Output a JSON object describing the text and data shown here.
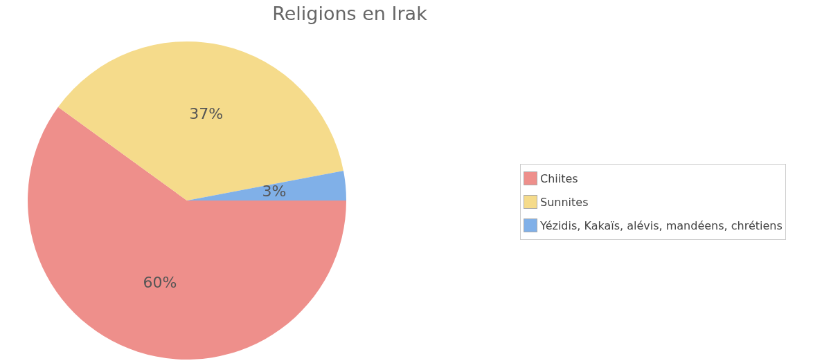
{
  "chart_data": {
    "type": "pie",
    "title": "Religions en Irak",
    "categories": [
      "Chiites",
      "Sunnites",
      "Yézidis, Kakaïs, alévis, mandéens, chrétiens"
    ],
    "values": [
      60,
      37,
      3
    ],
    "colors": [
      "#ee8f8b",
      "#f5db8b",
      "#80b0e8"
    ],
    "value_labels": [
      "60%",
      "37%",
      "3%"
    ],
    "legend": "right"
  }
}
